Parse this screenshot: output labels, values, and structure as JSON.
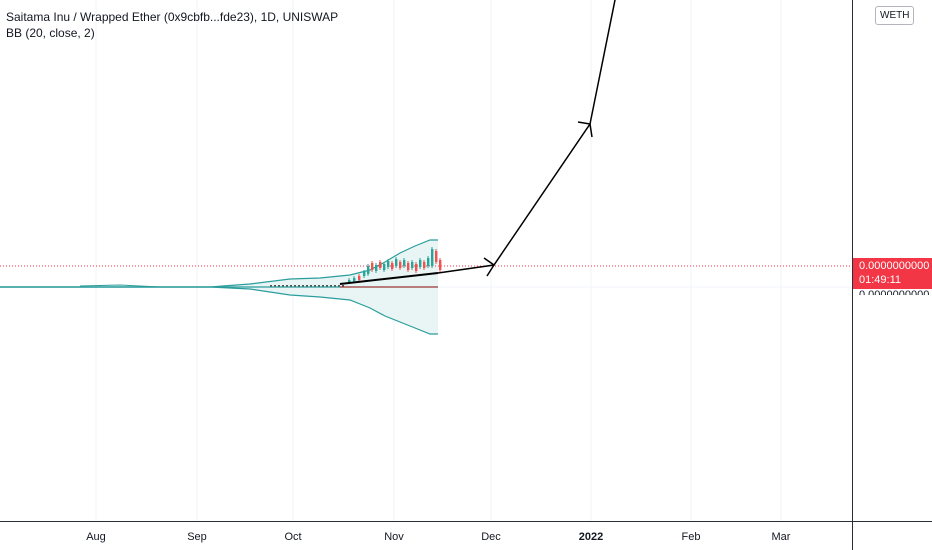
{
  "legend": {
    "title": "Saitama Inu / Wrapped Ether (0x9cbfb...fde23), 1D, UNISWAP",
    "indicator": "BB (20, close, 2)"
  },
  "price_scale": {
    "currency": "WETH",
    "last_price": "0.0000000000",
    "countdown": "01:49:11",
    "axis_price": "0.0000000000"
  },
  "time_axis": {
    "labels": [
      "Aug",
      "Sep",
      "Oct",
      "Nov",
      "Dec",
      "2022",
      "Feb",
      "Mar"
    ]
  },
  "colors": {
    "band": "#2a9d9c",
    "band_fill": "#e8f5f4",
    "price_line": "#f23645",
    "candle_up": "#26a69a",
    "candle_down": "#ef5350",
    "basis_line": "#b71c1c",
    "drawing": "#000000",
    "grid": "#f0f3fa"
  }
}
